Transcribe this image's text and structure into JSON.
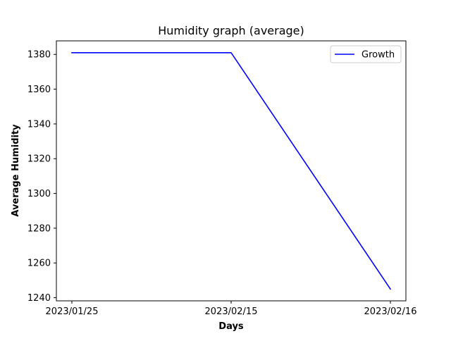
{
  "chart_data": {
    "type": "line",
    "title": "Humidity graph (average)",
    "xlabel": "Days",
    "ylabel": "Average Humidity",
    "categories": [
      "2023/01/25",
      "2023/02/15",
      "2023/02/16"
    ],
    "series": [
      {
        "name": "Growth",
        "color": "#0000ff",
        "values": [
          1381,
          1381,
          1245
        ]
      }
    ],
    "ylim": [
      1238.2,
      1387.8
    ],
    "yticks": [
      1240,
      1260,
      1280,
      1300,
      1320,
      1340,
      1360,
      1380
    ],
    "grid": false,
    "legend": "top-right"
  }
}
